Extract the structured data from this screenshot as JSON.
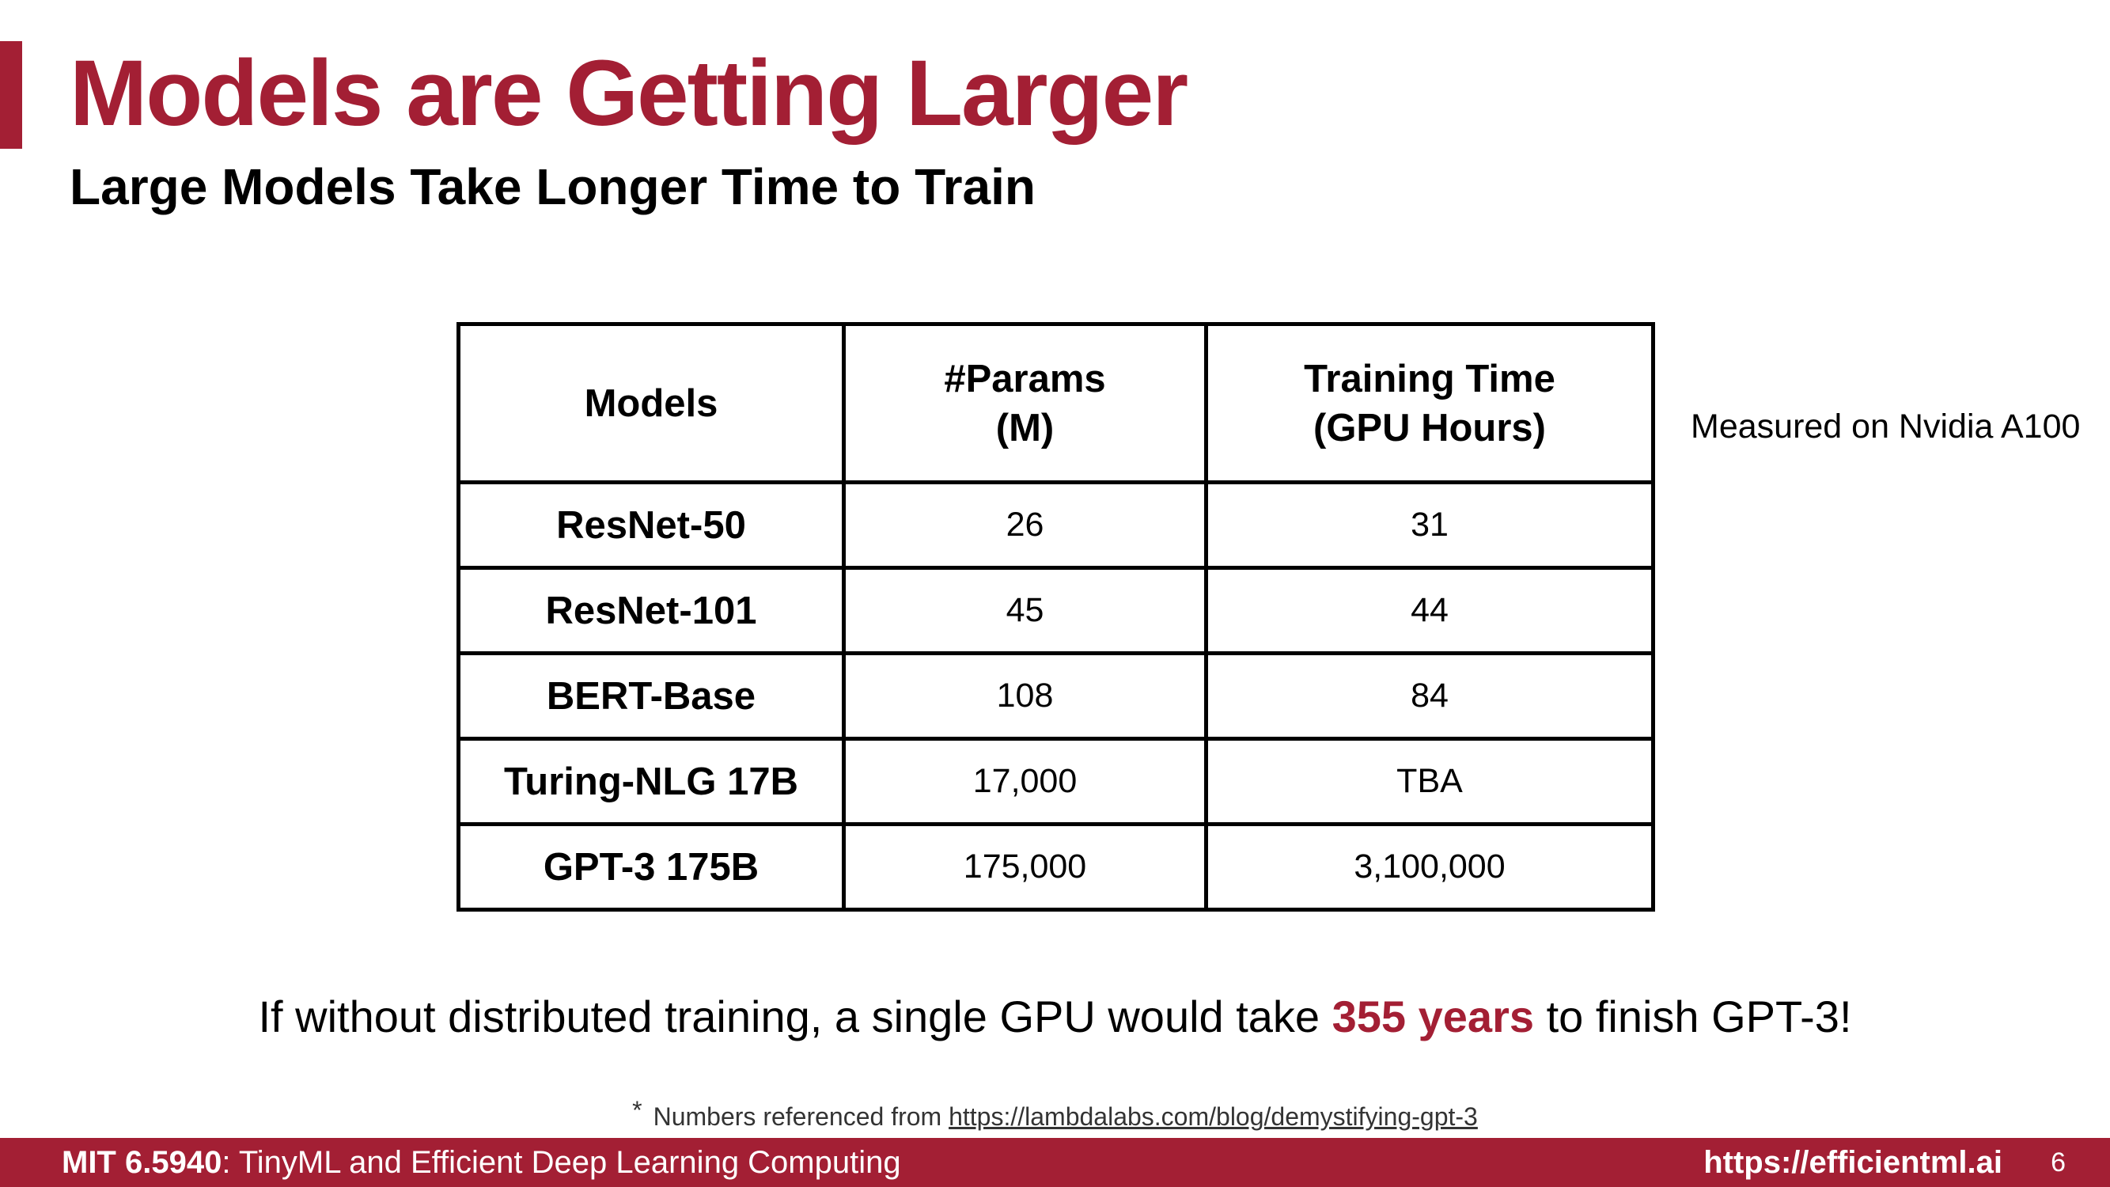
{
  "slide": {
    "title": "Models are Getting Larger",
    "subtitle": "Large Models Take Longer Time to Train"
  },
  "table": {
    "headers": {
      "models": "Models",
      "params_line1": "#Params",
      "params_line2": "(M)",
      "time_line1": "Training Time",
      "time_line2": "(GPU Hours)"
    },
    "rows": [
      {
        "model": "ResNet-50",
        "params": "26",
        "time": "31"
      },
      {
        "model": "ResNet-101",
        "params": "45",
        "time": "44"
      },
      {
        "model": "BERT-Base",
        "params": "108",
        "time": "84"
      },
      {
        "model": "Turing-NLG 17B",
        "params": "17,000",
        "time": "TBA"
      },
      {
        "model": "GPT-3 175B",
        "params": "175,000",
        "time": "3,100,000"
      }
    ],
    "side_note": "Measured on Nvidia A100"
  },
  "conclusion": {
    "before": "If without distributed training, a single GPU would take ",
    "highlight": "355 years",
    "after": " to finish GPT-3!"
  },
  "footnote": {
    "star": "*",
    "text": "Numbers referenced from ",
    "link": "https://lambdalabs.com/blog/demystifying-gpt-3"
  },
  "footer": {
    "course_code": "MIT 6.5940",
    "course_name": ": TinyML and Efficient Deep Learning Computing",
    "url": "https://efficientml.ai",
    "page": "6"
  },
  "colors": {
    "accent": "#a31f34"
  }
}
